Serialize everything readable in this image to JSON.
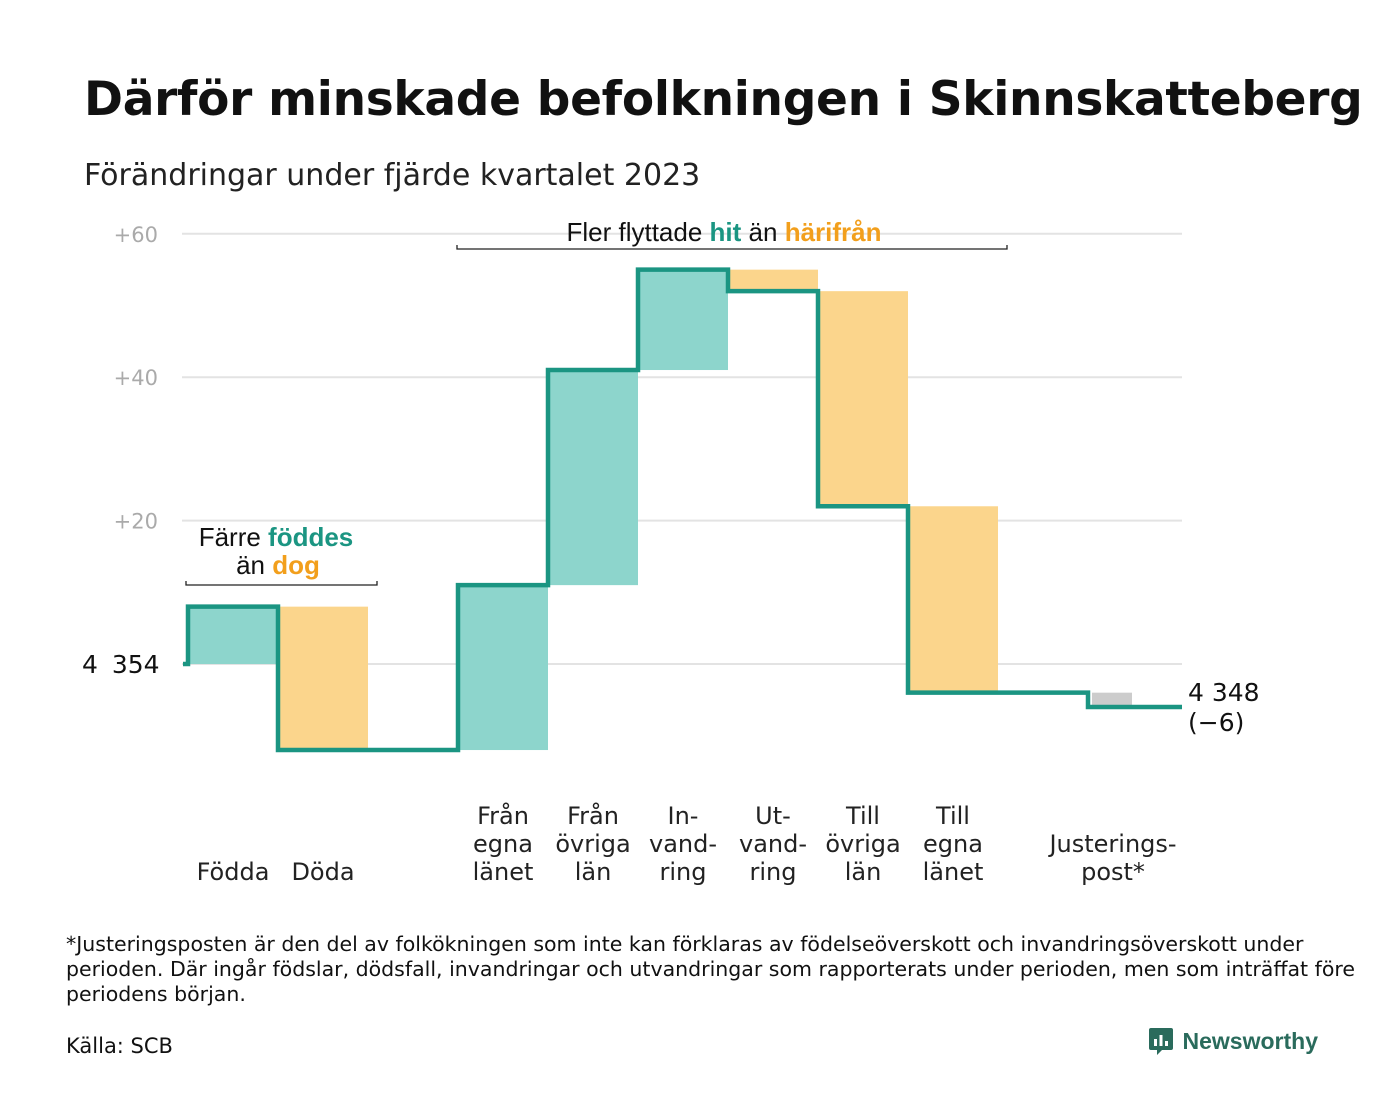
{
  "title": "Därför minskade befolkningen i Skinnskatteberg",
  "subtitle": "Förändringar under fjärde kvartalet 2023",
  "chart_data": {
    "type": "waterfall",
    "start_value": 4354,
    "start_label": "4 354",
    "end_label": "4 348",
    "change_label": "(−6)",
    "yticks": [
      {
        "value": 20,
        "label": "+20"
      },
      {
        "value": 40,
        "label": "+40"
      },
      {
        "value": 60,
        "label": "+60"
      }
    ],
    "ylim": [
      -20,
      60
    ],
    "grid": true,
    "steps": [
      {
        "lines": [
          "Födda"
        ],
        "delta": 8,
        "kind": "in"
      },
      {
        "lines": [
          "Döda"
        ],
        "delta": -20,
        "kind": "out"
      },
      {
        "lines": [],
        "delta": 0,
        "kind": "gap"
      },
      {
        "lines": [
          "Från",
          "egna",
          "länet"
        ],
        "delta": 23,
        "kind": "in"
      },
      {
        "lines": [
          "Från",
          "övriga",
          "län"
        ],
        "delta": 30,
        "kind": "in"
      },
      {
        "lines": [
          "In-",
          "vand-",
          "ring"
        ],
        "delta": 14,
        "kind": "in"
      },
      {
        "lines": [
          "Ut-",
          "vand-",
          "ring"
        ],
        "delta": -3,
        "kind": "out"
      },
      {
        "lines": [
          "Till",
          "övriga",
          "län"
        ],
        "delta": -30,
        "kind": "out"
      },
      {
        "lines": [
          "Till",
          "egna",
          "länet"
        ],
        "delta": -26,
        "kind": "out"
      },
      {
        "lines": [],
        "delta": 0,
        "kind": "gap"
      },
      {
        "lines": [
          "Justerings-",
          "post*"
        ],
        "delta": -2,
        "kind": "adj"
      }
    ],
    "annotations": [
      {
        "parts": [
          {
            "text": "Färre ",
            "kind": "plain"
          },
          {
            "text": "föddes",
            "kind": "in"
          }
        ],
        "parts2": [
          {
            "text": "än ",
            "kind": "plain"
          },
          {
            "text": "dog",
            "kind": "out"
          }
        ]
      },
      {
        "parts": [
          {
            "text": "Fler flyttade ",
            "kind": "plain"
          },
          {
            "text": "hit",
            "kind": "in"
          },
          {
            "text": " än ",
            "kind": "plain"
          },
          {
            "text": "härifrån",
            "kind": "out"
          }
        ]
      }
    ],
    "colors": {
      "in_fill": "#8dd5cc",
      "out_fill": "#fbd58c",
      "adj_fill": "#cccccc",
      "line": "#1b9582",
      "in_text": "#1b9582",
      "out_text": "#f29f1c",
      "grid": "#e3e3e3",
      "tick": "#aaaaaa"
    }
  },
  "footnote": "*Justeringsposten är den del av folkökningen som inte kan förklaras av födelseöverskott och invandringsöverskott under perioden. Där ingår födslar, dödsfall, invandringar och utvandringar som rapporterats under perioden, men som inträffat före periodens början.",
  "source": "Källa: SCB",
  "brand": {
    "name": "Newsworthy",
    "icon": "newsworthy-logo-icon"
  }
}
